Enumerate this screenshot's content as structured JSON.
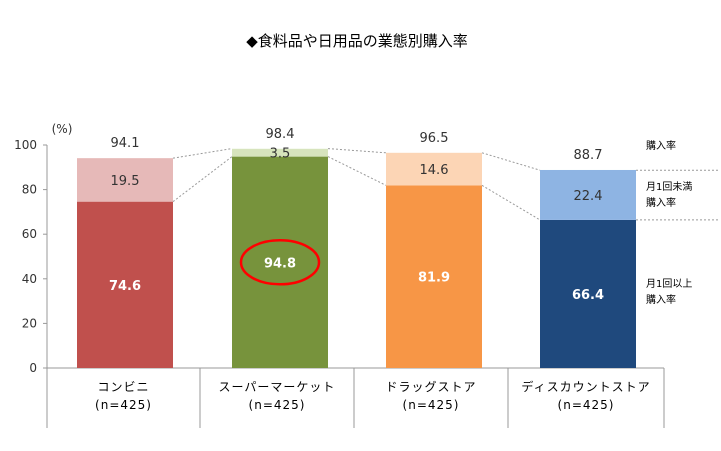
{
  "chart_data": {
    "type": "bar",
    "stacked": true,
    "title": "◆食料品や日用品の業態別購入率",
    "unit_label": "(%)",
    "ylim": [
      0,
      100
    ],
    "yticks": [
      0,
      20,
      40,
      60,
      80,
      100
    ],
    "grid": false,
    "categories": [
      {
        "name": "コンビニ",
        "n": "(n=425)"
      },
      {
        "name": "スーパーマーケット",
        "n": "(n=425)"
      },
      {
        "name": "ドラッグストア",
        "n": "(n=425)"
      },
      {
        "name": "ディスカウントストア",
        "n": "(n=425)"
      }
    ],
    "series": [
      {
        "name": "月1回以上\n購入率",
        "values": [
          74.6,
          94.8,
          81.9,
          66.4
        ]
      },
      {
        "name": "月1回未満\n購入率",
        "values": [
          19.5,
          3.5,
          14.6,
          22.4
        ]
      }
    ],
    "totals": {
      "name": "購入率",
      "values": [
        94.1,
        98.4,
        96.5,
        88.7
      ]
    },
    "colors": {
      "lower": [
        "#c0504d",
        "#77933c",
        "#f79646",
        "#1f497d"
      ],
      "upper": [
        "#e6b9b8",
        "#d7e4bd",
        "#fcd5b5",
        "#8eb4e3"
      ],
      "highlight": "#ff0000",
      "connector": "#999999"
    },
    "highlight": {
      "category_index": 1,
      "series_index": 0
    },
    "legend_position": "right"
  }
}
